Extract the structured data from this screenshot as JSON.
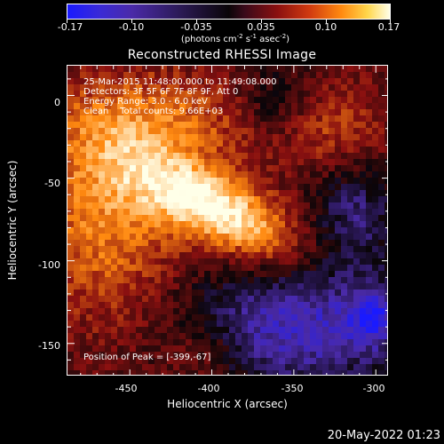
{
  "colorbar": {
    "tick_labels": [
      "-0.17",
      "-0.10",
      "-0.035",
      "0.035",
      "0.10",
      "0.17"
    ],
    "units_main": "(photons cm",
    "units_exp1": "-2",
    "units_mid1": " s",
    "units_exp2": "-1",
    "units_mid2": " asec",
    "units_exp3": "-2",
    "units_end": ")"
  },
  "title": "Reconstructed RHESSI Image",
  "annotations": {
    "line1": "25-Mar-2015 11:48:00.000 to 11:49:08.000",
    "line2": "Detectors: 3F 5F 6F 7F 8F 9F, Att 0",
    "line3": "Energy Range: 3.0 - 6.0 keV",
    "line4": "Clean    Total counts: 9.66E+03",
    "peak": "Position of Peak = [-399,-67]"
  },
  "axes": {
    "xlabel": "Heliocentric X (arcsec)",
    "ylabel": "Heliocentric Y (arcsec)",
    "xticks": [
      "-450",
      "-400",
      "-350",
      "-300"
    ],
    "yticks": [
      "0",
      "-50",
      "-100",
      "-150"
    ]
  },
  "datestamp": "20-May-2022 01:23",
  "chart_data": {
    "type": "heatmap",
    "title": "Reconstructed RHESSI Image",
    "xlabel": "Heliocentric X (arcsec)",
    "ylabel": "Heliocentric Y (arcsec)",
    "xlim": [
      -488,
      -292
    ],
    "ylim": [
      -170,
      18
    ],
    "color_range": [
      -0.17,
      0.17
    ],
    "peak": [
      -399,
      -67
    ],
    "colormap": [
      "#1a1aff",
      "#4a2aa8",
      "#0a0508",
      "#8a1010",
      "#ff8a10",
      "#ffffe8"
    ]
  }
}
